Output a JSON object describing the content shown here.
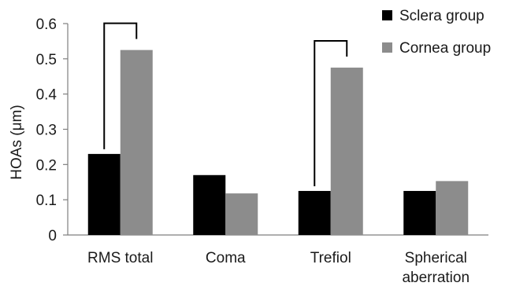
{
  "chart_data": {
    "type": "bar",
    "categories": [
      [
        "RMS total"
      ],
      [
        "Coma"
      ],
      [
        "Trefiol"
      ],
      [
        "Spherical",
        "aberration"
      ]
    ],
    "series": [
      {
        "name": "Sclera group",
        "color": "#000000",
        "values": [
          0.23,
          0.17,
          0.125,
          0.125
        ]
      },
      {
        "name": "Cornea group",
        "color": "#8c8c8c",
        "values": [
          0.525,
          0.118,
          0.475,
          0.153
        ]
      }
    ],
    "ylabel": "HOAs (μm)",
    "ylim": [
      0,
      0.6
    ],
    "yticks": [
      "0",
      "0.1",
      "0.2",
      "0.3",
      "0.4",
      "0.5",
      "0.6"
    ],
    "grid": false,
    "legend_position": "top-right",
    "significance_brackets": [
      {
        "category_index": 0
      },
      {
        "category_index": 2
      }
    ]
  }
}
